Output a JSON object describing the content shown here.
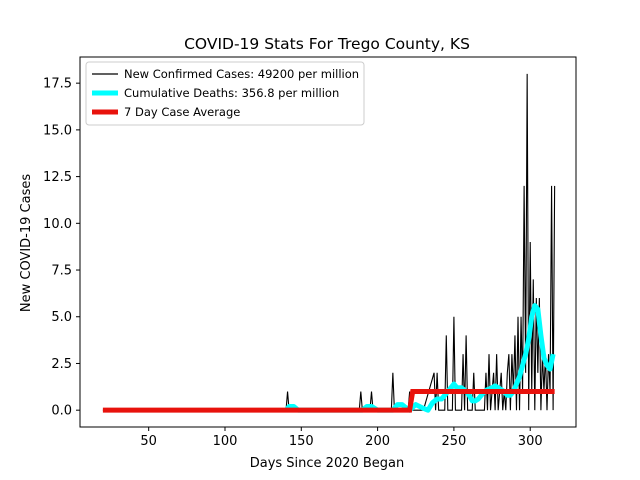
{
  "chart_data": {
    "type": "line",
    "title": "COVID-19 Stats For Trego County, KS",
    "xlabel": "Days Since 2020 Began",
    "ylabel": "New COVID-19 Cases",
    "xlim": [
      5,
      330
    ],
    "ylim": [
      -0.9,
      18.9
    ],
    "x_ticks": [
      50,
      100,
      150,
      200,
      250,
      300
    ],
    "y_ticks": [
      0.0,
      2.5,
      5.0,
      7.5,
      10.0,
      12.5,
      15.0,
      17.5
    ],
    "x_tick_labels": [
      "50",
      "100",
      "150",
      "200",
      "250",
      "300"
    ],
    "y_tick_labels": [
      "0.0",
      "2.5",
      "5.0",
      "7.5",
      "10.0",
      "12.5",
      "15.0",
      "17.5"
    ],
    "grid": false,
    "legend_position": "top-left",
    "colors": {
      "new_cases": "#000000",
      "deaths": "#00ffff",
      "average": "#e8120c"
    },
    "series": [
      {
        "name": "New Confirmed Cases: 49200 per million",
        "x": [
          20,
          140,
          141,
          142,
          143,
          144,
          188,
          189,
          190,
          195,
          196,
          197,
          209,
          210,
          211,
          220,
          221,
          222,
          223,
          230,
          237,
          238,
          239,
          240,
          241,
          244,
          245,
          246,
          249,
          250,
          251,
          255,
          256,
          257,
          258,
          259,
          262,
          263,
          264,
          270,
          271,
          272,
          273,
          274,
          275,
          276,
          277,
          278,
          279,
          280,
          281,
          282,
          283,
          284,
          285,
          286,
          287,
          288,
          289,
          290,
          291,
          292,
          293,
          294,
          295,
          296,
          297,
          298,
          299,
          300,
          301,
          302,
          303,
          304,
          305,
          306,
          307,
          308,
          309,
          310,
          311,
          312,
          313,
          314,
          315,
          316
        ],
        "values": [
          0,
          0,
          1,
          0,
          0,
          0,
          0,
          1,
          0,
          0,
          1,
          0,
          0,
          2,
          0,
          0,
          1,
          0,
          0,
          0,
          2,
          0,
          2,
          0,
          0,
          0,
          4,
          0,
          0,
          5,
          0,
          0,
          3,
          0,
          4,
          0,
          0,
          2,
          0,
          0,
          2,
          0,
          3,
          0,
          1,
          2,
          0,
          3,
          0,
          1,
          2,
          0,
          1,
          0,
          2,
          3,
          0,
          3,
          1,
          4,
          0,
          5,
          0,
          5,
          1,
          12,
          2,
          18,
          0,
          9,
          1,
          7,
          0,
          6,
          2,
          6,
          0,
          3,
          1,
          3,
          0,
          3,
          1,
          12,
          0,
          12
        ],
        "x_shift": 0
      },
      {
        "name": "Cumulative Deaths: 356.8 per million",
        "x": [
          140,
          142,
          145,
          148,
          190,
          193,
          196,
          200,
          210,
          213,
          216,
          219,
          221,
          225,
          230,
          233,
          236,
          239,
          242,
          245,
          248,
          250,
          252,
          255,
          258,
          260,
          262,
          264,
          266,
          268,
          270,
          272,
          275,
          277,
          279,
          281,
          283,
          285,
          287,
          289,
          291,
          293,
          295,
          297,
          299,
          301,
          303,
          305,
          307,
          309,
          311,
          313,
          315
        ],
        "values": [
          0,
          0.2,
          0.2,
          0,
          0,
          0.2,
          0.2,
          0,
          0,
          0.3,
          0.3,
          0.1,
          0,
          0.3,
          0.1,
          0,
          0.4,
          0.6,
          0.6,
          0.9,
          1.2,
          1.4,
          1.2,
          1.2,
          1.0,
          0.8,
          0.5,
          0.5,
          0.6,
          0.8,
          1.0,
          1.1,
          1.2,
          1.3,
          1.2,
          1.1,
          1.0,
          0.8,
          0.8,
          1.0,
          1.4,
          1.8,
          2.4,
          3.0,
          3.8,
          5.0,
          5.6,
          5.4,
          4.0,
          2.8,
          2.4,
          2.2,
          3.0
        ]
      },
      {
        "name": "7 Day Case Average",
        "x": [
          20,
          221,
          223,
          316
        ],
        "values": [
          0,
          0,
          1,
          1
        ]
      }
    ]
  }
}
